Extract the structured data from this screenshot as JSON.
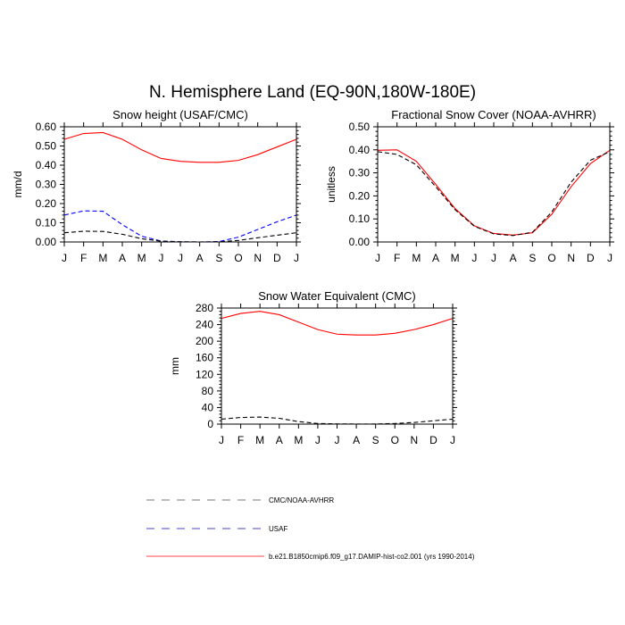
{
  "figure": {
    "title": "N. Hemisphere Land (EQ-90N,180W-180E)"
  },
  "legend": {
    "items": [
      {
        "label": "CMC/NOAA-AVHRR",
        "color": "#000000",
        "dash": "dashed"
      },
      {
        "label": "USAF",
        "color": "#0000ff",
        "dash": "dashed"
      },
      {
        "label": "b.e21.B1850cmip6.f09_g17.DAMIP-hist-co2.001 (yrs 1990-2014)",
        "color": "#ff0000",
        "dash": "solid"
      }
    ]
  },
  "chart_data": [
    {
      "type": "line",
      "title": "Snow height (USAF/CMC)",
      "xlabel": "",
      "ylabel": "mm/d",
      "categories": [
        "J",
        "F",
        "M",
        "A",
        "M",
        "J",
        "J",
        "A",
        "S",
        "O",
        "N",
        "D",
        "J"
      ],
      "ylim": [
        0,
        0.6
      ],
      "yticks": [
        "0.00",
        "0.10",
        "0.20",
        "0.30",
        "0.40",
        "0.50",
        "0.60"
      ],
      "series": [
        {
          "key": "model",
          "color": "#ff0000",
          "dash": "solid",
          "values": [
            0.535,
            0.565,
            0.57,
            0.535,
            0.48,
            0.435,
            0.42,
            0.415,
            0.415,
            0.425,
            0.455,
            0.495,
            0.535
          ]
        },
        {
          "key": "usaf",
          "color": "#0000ff",
          "dash": "dashed",
          "values": [
            0.14,
            0.162,
            0.16,
            0.09,
            0.03,
            0.005,
            0.001,
            0.0,
            0.002,
            0.025,
            0.065,
            0.105,
            0.14
          ]
        },
        {
          "key": "obs",
          "color": "#000000",
          "dash": "dashed",
          "values": [
            0.048,
            0.056,
            0.055,
            0.04,
            0.017,
            0.004,
            0.001,
            0.0,
            0.001,
            0.008,
            0.022,
            0.035,
            0.048
          ]
        }
      ]
    },
    {
      "type": "line",
      "title": "Fractional Snow Cover (NOAA-AVHRR)",
      "xlabel": "",
      "ylabel": "unitless",
      "categories": [
        "J",
        "F",
        "M",
        "A",
        "M",
        "J",
        "J",
        "A",
        "S",
        "O",
        "N",
        "D",
        "J"
      ],
      "ylim": [
        0,
        0.5
      ],
      "yticks": [
        "0.00",
        "0.10",
        "0.20",
        "0.30",
        "0.40",
        "0.50"
      ],
      "series": [
        {
          "key": "model",
          "color": "#ff0000",
          "dash": "solid",
          "values": [
            0.398,
            0.4,
            0.35,
            0.25,
            0.145,
            0.07,
            0.037,
            0.03,
            0.04,
            0.12,
            0.24,
            0.34,
            0.398
          ]
        },
        {
          "key": "obs",
          "color": "#000000",
          "dash": "dashed",
          "values": [
            0.392,
            0.38,
            0.335,
            0.24,
            0.14,
            0.068,
            0.035,
            0.028,
            0.042,
            0.13,
            0.26,
            0.355,
            0.392
          ]
        }
      ]
    },
    {
      "type": "line",
      "title": "Snow Water Equivalent (CMC)",
      "xlabel": "",
      "ylabel": "mm",
      "categories": [
        "J",
        "F",
        "M",
        "A",
        "M",
        "J",
        "J",
        "A",
        "S",
        "O",
        "N",
        "D",
        "J"
      ],
      "ylim": [
        0,
        280
      ],
      "yticks": [
        "0",
        "40",
        "80",
        "120",
        "160",
        "200",
        "240",
        "280"
      ],
      "series": [
        {
          "key": "model",
          "color": "#ff0000",
          "dash": "solid",
          "values": [
            255,
            267,
            272,
            264,
            246,
            228,
            217,
            215,
            215,
            219,
            228,
            240,
            255
          ]
        },
        {
          "key": "obs",
          "color": "#000000",
          "dash": "dashed",
          "values": [
            12,
            16,
            17,
            14,
            6,
            1.5,
            0.5,
            0.2,
            0.3,
            1.5,
            4,
            8,
            12
          ]
        }
      ]
    }
  ]
}
